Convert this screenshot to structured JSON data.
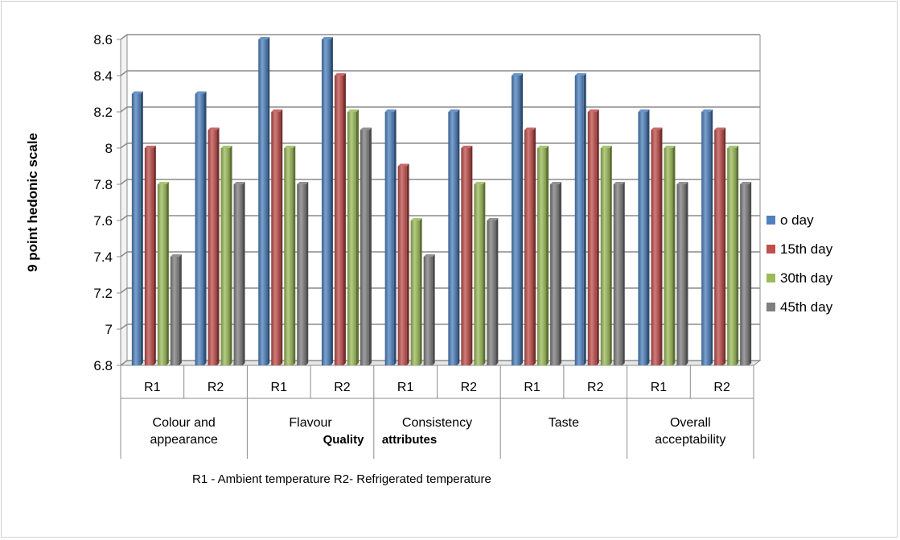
{
  "chart_data": {
    "type": "bar",
    "ylabel": "9 point hedonic scale",
    "xlabel": "Quality attributes",
    "xlabel_parts": [
      "Quality",
      "attributes"
    ],
    "ylim": [
      6.8,
      8.6
    ],
    "yticks": [
      "6.8",
      "7",
      "7.2",
      "7.4",
      "7.6",
      "7.8",
      "8",
      "8.2",
      "8.4",
      "8.6"
    ],
    "grid": true,
    "legend_position": "right",
    "groups": [
      {
        "label_lines": [
          "Colour and",
          "appearance"
        ],
        "categories": [
          "R1",
          "R2"
        ]
      },
      {
        "label_lines": [
          "Flavour"
        ],
        "categories": [
          "R1",
          "R2"
        ]
      },
      {
        "label_lines": [
          "Consistency"
        ],
        "categories": [
          "R1",
          "R2"
        ]
      },
      {
        "label_lines": [
          "Taste"
        ],
        "categories": [
          "R1",
          "R2"
        ]
      },
      {
        "label_lines": [
          "Overall",
          "acceptability"
        ],
        "categories": [
          "R1",
          "R2"
        ]
      }
    ],
    "series": [
      {
        "name": "o day",
        "color": "#4F81BD",
        "values": [
          8.3,
          8.3,
          8.6,
          8.6,
          8.2,
          8.2,
          8.4,
          8.4,
          8.2,
          8.2
        ]
      },
      {
        "name": "15th day",
        "color": "#C0504D",
        "values": [
          8.0,
          8.1,
          8.2,
          8.4,
          7.9,
          8.0,
          8.1,
          8.2,
          8.1,
          8.1
        ]
      },
      {
        "name": "30th day",
        "color": "#9BBB59",
        "values": [
          7.8,
          8.0,
          8.0,
          8.2,
          7.6,
          7.8,
          8.0,
          8.0,
          8.0,
          8.0
        ]
      },
      {
        "name": "45th day",
        "color": "#7F7F7F",
        "values": [
          7.4,
          7.8,
          7.8,
          8.1,
          7.4,
          7.6,
          7.8,
          7.8,
          7.8,
          7.8
        ]
      }
    ]
  },
  "footnote": "R1 - Ambient temperature  R2- Refrigerated temperature"
}
